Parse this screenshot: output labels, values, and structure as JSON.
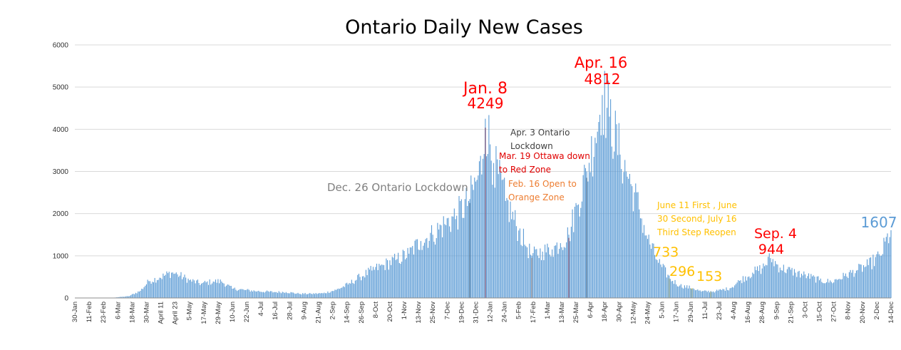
{
  "chart_data": {
    "type": "bar",
    "title": "Ontario Daily New Cases",
    "xlabel": "",
    "ylabel": "",
    "ylim": [
      0,
      6000
    ],
    "yticks": [
      0,
      1000,
      2000,
      3000,
      4000,
      5000,
      6000
    ],
    "grid": true,
    "legend": "none",
    "bar_color": "#5b9bd5",
    "x_start_date": "2020-01-30",
    "x_end_date": "2021-12-14",
    "x_tick_labels": [
      "30-Jan",
      "11-Feb",
      "23-Feb",
      "6-Mar",
      "18-Mar",
      "30-Mar",
      "April 11",
      "April 23",
      "5-May",
      "17-May",
      "29-May",
      "10-Jun",
      "22-Jun",
      "4-Jul",
      "16-Jul",
      "28-Jul",
      "9-Aug",
      "21-Aug",
      "2-Sep",
      "14-Sep",
      "26-Sep",
      "8-Oct",
      "20-Oct",
      "1-Nov",
      "13-Nov",
      "25-Nov",
      "7-Dec",
      "19-Dec",
      "31-Dec",
      "12-Jan",
      "24-Jan",
      "5-Feb",
      "17-Feb",
      "1-Mar",
      "13-Mar",
      "25-Mar",
      "6-Apr",
      "18-Apr",
      "30-Apr",
      "12-May",
      "24-May",
      "5-Jun",
      "17-Jun",
      "29-Jun",
      "11-Jul",
      "23-Jul",
      "4-Aug",
      "16-Aug",
      "28-Aug",
      "9-Sep",
      "21-Sep",
      "3-Oct",
      "15-Oct",
      "27-Oct",
      "8-Nov",
      "20-Nov",
      "2-Dec",
      "14-Dec"
    ],
    "series": [
      {
        "name": "",
        "points": [
          [
            "2020-01-30",
            0
          ],
          [
            "2020-03-01",
            5
          ],
          [
            "2020-03-15",
            40
          ],
          [
            "2020-03-25",
            170
          ],
          [
            "2020-04-01",
            400
          ],
          [
            "2020-04-10",
            480
          ],
          [
            "2020-04-20",
            600
          ],
          [
            "2020-04-25",
            560
          ],
          [
            "2020-05-05",
            420
          ],
          [
            "2020-05-15",
            340
          ],
          [
            "2020-05-25",
            390
          ],
          [
            "2020-06-01",
            390
          ],
          [
            "2020-06-10",
            220
          ],
          [
            "2020-06-20",
            190
          ],
          [
            "2020-07-01",
            160
          ],
          [
            "2020-07-15",
            140
          ],
          [
            "2020-07-25",
            140
          ],
          [
            "2020-08-05",
            100
          ],
          [
            "2020-08-15",
            100
          ],
          [
            "2020-08-25",
            110
          ],
          [
            "2020-09-05",
            190
          ],
          [
            "2020-09-15",
            320
          ],
          [
            "2020-09-25",
            500
          ],
          [
            "2020-10-05",
            650
          ],
          [
            "2020-10-15",
            780
          ],
          [
            "2020-10-25",
            900
          ],
          [
            "2020-11-05",
            1050
          ],
          [
            "2020-11-15",
            1350
          ],
          [
            "2020-11-25",
            1500
          ],
          [
            "2020-12-05",
            1750
          ],
          [
            "2020-12-15",
            1950
          ],
          [
            "2020-12-25",
            2300
          ],
          [
            "2021-01-01",
            2800
          ],
          [
            "2021-01-06",
            3300
          ],
          [
            "2021-01-08",
            4249
          ],
          [
            "2021-01-15",
            3200
          ],
          [
            "2021-01-25",
            2300
          ],
          [
            "2021-02-05",
            1600
          ],
          [
            "2021-02-12",
            1200
          ],
          [
            "2021-02-16",
            1000
          ],
          [
            "2021-02-25",
            1100
          ],
          [
            "2021-03-05",
            1150
          ],
          [
            "2021-03-12",
            1300
          ],
          [
            "2021-03-19",
            1500
          ],
          [
            "2021-03-26",
            2200
          ],
          [
            "2021-04-03",
            3000
          ],
          [
            "2021-04-10",
            3800
          ],
          [
            "2021-04-16",
            4812
          ],
          [
            "2021-04-22",
            4300
          ],
          [
            "2021-05-01",
            3400
          ],
          [
            "2021-05-10",
            2700
          ],
          [
            "2021-05-17",
            2100
          ],
          [
            "2021-05-24",
            1400
          ],
          [
            "2021-06-01",
            900
          ],
          [
            "2021-06-05",
            733
          ],
          [
            "2021-06-12",
            450
          ],
          [
            "2021-06-20",
            296
          ],
          [
            "2021-07-01",
            230
          ],
          [
            "2021-07-08",
            153
          ],
          [
            "2021-07-20",
            160
          ],
          [
            "2021-08-01",
            230
          ],
          [
            "2021-08-10",
            420
          ],
          [
            "2021-08-20",
            600
          ],
          [
            "2021-08-28",
            700
          ],
          [
            "2021-09-04",
            944
          ],
          [
            "2021-09-12",
            720
          ],
          [
            "2021-09-25",
            600
          ],
          [
            "2021-10-05",
            520
          ],
          [
            "2021-10-15",
            420
          ],
          [
            "2021-10-25",
            380
          ],
          [
            "2021-11-05",
            520
          ],
          [
            "2021-11-15",
            650
          ],
          [
            "2021-11-25",
            780
          ],
          [
            "2021-12-05",
            1000
          ],
          [
            "2021-12-14",
            1607
          ]
        ]
      }
    ],
    "markers": [
      {
        "date": "2020-12-26",
        "color": "#404040"
      },
      {
        "date": "2021-01-08",
        "color": "#c00000"
      },
      {
        "date": "2021-02-16",
        "color": "#ed7d31"
      },
      {
        "date": "2021-03-19",
        "color": "#c00000"
      },
      {
        "date": "2021-04-03",
        "color": "#404040"
      },
      {
        "date": "2021-06-11",
        "color": "#ffc000"
      },
      {
        "date": "2021-06-30",
        "color": "#ffc000"
      },
      {
        "date": "2021-07-16",
        "color": "#ffc000"
      }
    ],
    "annotations": {
      "jan8": {
        "date": "Jan. 8",
        "value": "4249",
        "color": "#ff0000"
      },
      "apr16": {
        "date": "Apr. 16",
        "value": "4812",
        "color": "#ff0000"
      },
      "apr3": {
        "line1": "Apr. 3 Ontario",
        "line2": "Lockdown",
        "color": "#404040"
      },
      "mar19": {
        "line1": "Mar. 19 Ottawa down",
        "line2": "to Red Zone",
        "color": "#e00000"
      },
      "feb16": {
        "line1": "Feb. 16 Open to",
        "line2": "Orange Zone",
        "color": "#ed7d31"
      },
      "dec26": {
        "text": "Dec. 26 Ontario Lockdown",
        "color": "#808080"
      },
      "june": {
        "line1": "June 11 First , June",
        "line2": "30 Second, July 16",
        "line3": "Third Step Reopen",
        "color": "#ffc000"
      },
      "v733": {
        "text": "733",
        "color": "#ffc000"
      },
      "v296": {
        "text": "296",
        "color": "#ffc000"
      },
      "v153": {
        "text": "153",
        "color": "#ffc000"
      },
      "sep4": {
        "date": "Sep. 4",
        "value": "944",
        "color": "#ff0000"
      },
      "v1607": {
        "text": "1607",
        "color": "#5b9bd5"
      }
    }
  }
}
